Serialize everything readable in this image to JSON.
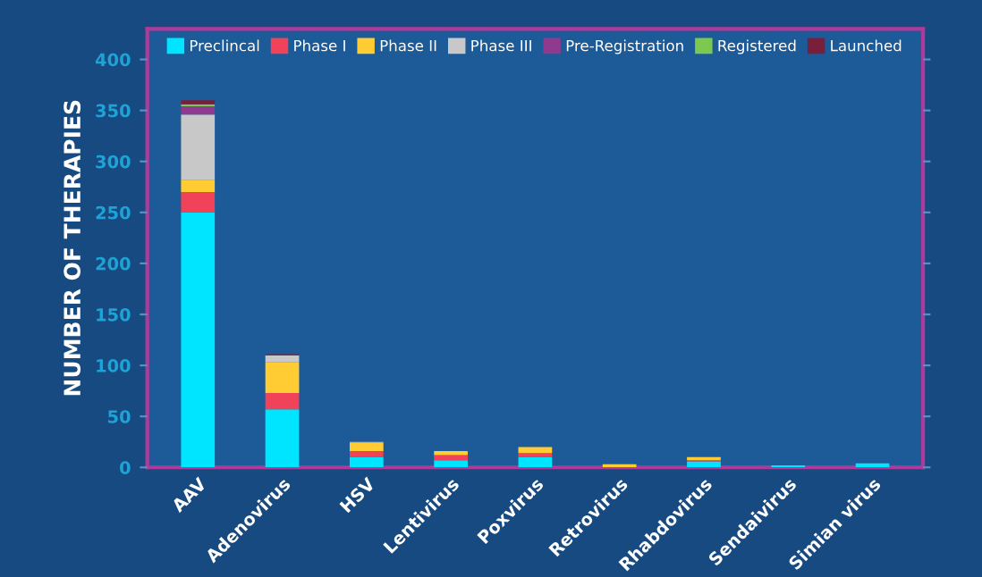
{
  "chart_data": {
    "type": "bar",
    "stacked": true,
    "ylabel": "NUMBER OF THERAPIES",
    "categories": [
      "AAV",
      "Adenovirus",
      "HSV",
      "Lentivirus",
      "Poxvirus",
      "Retrovirus",
      "Rhabdovirus",
      "Sendaivirus",
      "Simian virus"
    ],
    "series": [
      {
        "name": "Preclincal",
        "color": "#00e5ff",
        "values": [
          250,
          57,
          10,
          7,
          10,
          0,
          6,
          2,
          4
        ]
      },
      {
        "name": "Phase I",
        "color": "#f0435a",
        "values": [
          20,
          16,
          6,
          5,
          4,
          0,
          1,
          0,
          0
        ]
      },
      {
        "name": "Phase II",
        "color": "#ffcc33",
        "values": [
          12,
          30,
          8,
          4,
          6,
          3,
          3,
          0,
          0
        ]
      },
      {
        "name": "Phase III",
        "color": "#c8c8c8",
        "values": [
          64,
          7,
          1,
          0,
          0,
          0,
          0,
          0,
          0
        ]
      },
      {
        "name": "Pre-Registration",
        "color": "#8e3a8e",
        "values": [
          8,
          0,
          0,
          0,
          0,
          0,
          0,
          0,
          0
        ]
      },
      {
        "name": "Registered",
        "color": "#7dc850",
        "values": [
          2,
          0,
          0,
          0,
          0,
          0,
          0,
          0,
          0
        ]
      },
      {
        "name": "Launched",
        "color": "#7a1f3a",
        "values": [
          4,
          1,
          0,
          0,
          0,
          0,
          0,
          0,
          0
        ]
      }
    ],
    "ylim": [
      0,
      430
    ],
    "yticks": [
      0,
      50,
      100,
      150,
      200,
      250,
      300,
      350,
      400
    ],
    "grid": false,
    "legend": "top"
  }
}
